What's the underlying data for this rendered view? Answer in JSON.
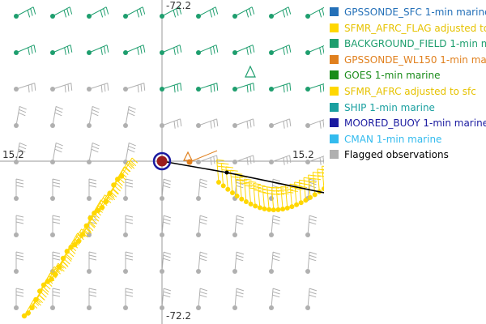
{
  "map": {
    "lat_label": "15.2",
    "lon_label": "-72.2",
    "colors": {
      "grid": "#999999",
      "flagged": "#b0b0b0",
      "background_field": "#1e9e6e",
      "sfmr": "#ffd700",
      "track": "#000000",
      "buoy_ring": "#1a1aa0",
      "buoy_center": "#9b1c1c",
      "gpssonde_wl150": "#e0801e"
    }
  },
  "legend": {
    "items": [
      {
        "label": "GPSSONDE_SFC 1-min marine",
        "color": "#2470b8",
        "text_color": "#2470b8"
      },
      {
        "label": "SFMR_AFRC_FLAG adjusted to",
        "color": "#ffd700",
        "text_color": "#e6c200"
      },
      {
        "label": "BACKGROUND_FIELD 1-min m",
        "color": "#1e9e6e",
        "text_color": "#1e9e6e"
      },
      {
        "label": "GPSSONDE_WL150 1-min mar",
        "color": "#e0801e",
        "text_color": "#e0801e"
      },
      {
        "label": "GOES 1-min marine",
        "color": "#1a8c1a",
        "text_color": "#1a8c1a"
      },
      {
        "label": "SFMR_AFRC adjusted to sfc",
        "color": "#ffd700",
        "text_color": "#e6c200"
      },
      {
        "label": "SHIP 1-min marine",
        "color": "#1aa0a0",
        "text_color": "#1aa0a0"
      },
      {
        "label": "MOORED_BUOY 1-min marine",
        "color": "#1a1aa0",
        "text_color": "#1a1aa0"
      },
      {
        "label": "CMAN 1-min marine",
        "color": "#33bbee",
        "text_color": "#33bbee"
      },
      {
        "label": "Flagged observations",
        "color": "#b0b0b0",
        "text_color": "#000000"
      }
    ]
  }
}
